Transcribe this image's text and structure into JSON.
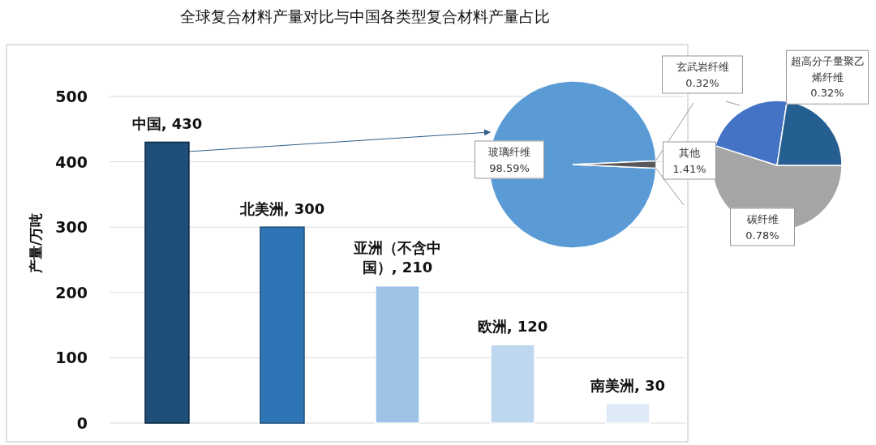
{
  "chart_data": [
    {
      "type": "bar",
      "title": "全球复合材料产量对比与中国各类型复合材料产量占比",
      "ylabel": "产量/万吨",
      "categories": [
        null,
        null,
        null,
        null,
        null
      ],
      "values": [
        430,
        300,
        210,
        120,
        30
      ],
      "value_labels": [
        "中国, 430",
        "北美洲, 300",
        "亚洲（不含中国）, 210",
        "欧洲, 120",
        "南美洲, 30"
      ],
      "colors": [
        "#1f4e79",
        "#2e75b6",
        "#9dc3e6",
        "#bdd7ee",
        "#deebf7"
      ],
      "ylim": [
        0,
        500
      ],
      "yticks": [
        0,
        100,
        200,
        300,
        400,
        500
      ],
      "grid": "y"
    },
    {
      "type": "pie",
      "categories": [
        "玻璃纤维",
        "其他"
      ],
      "values": [
        98.59,
        1.41
      ],
      "value_labels": [
        "98.59%",
        "1.41%"
      ],
      "colors": [
        "#5b9bd5",
        "#595959"
      ]
    },
    {
      "type": "pie",
      "categories": [
        "碳纤维",
        "玄武岩纤维",
        "超高分子量聚乙烯纤维"
      ],
      "values": [
        0.78,
        0.32,
        0.32
      ],
      "value_labels": [
        "0.78%",
        "0.32%",
        "0.32%"
      ],
      "colors": [
        "#a5a5a5",
        "#4472c4",
        "#255e91"
      ]
    }
  ]
}
